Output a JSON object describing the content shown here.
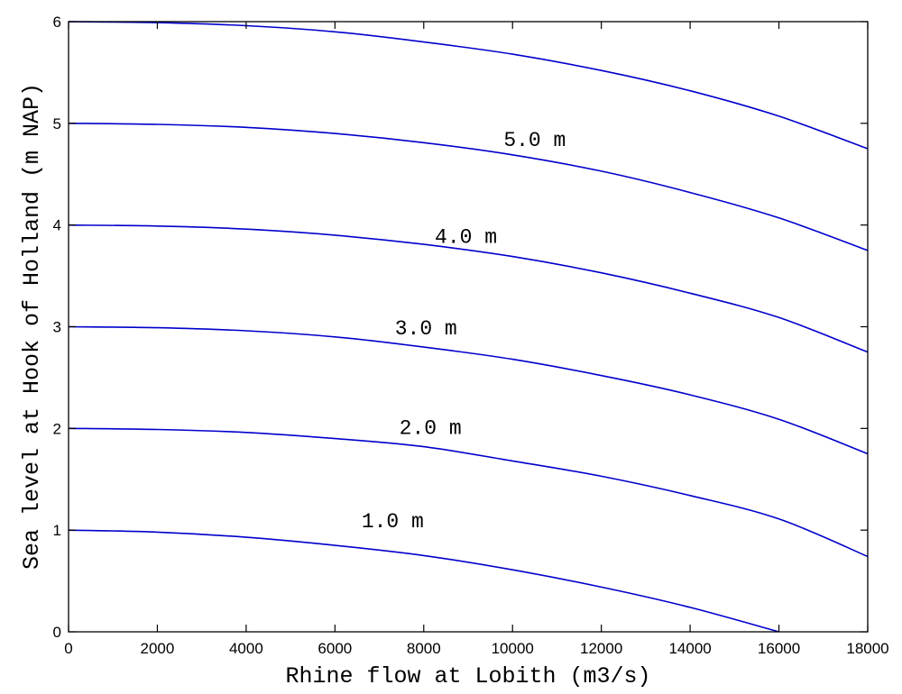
{
  "chart_data": {
    "type": "line",
    "title": "",
    "xlabel": "Rhine flow at Lobith (m3/s)",
    "ylabel": "Sea level at Hook of Holland (m NAP)",
    "xlim": [
      0,
      18000
    ],
    "ylim": [
      0,
      6
    ],
    "xticks": [
      "0",
      "2000",
      "4000",
      "6000",
      "8000",
      "10000",
      "12000",
      "14000",
      "16000",
      "18000"
    ],
    "yticks": [
      "0",
      "1",
      "2",
      "3",
      "4",
      "5",
      "6"
    ],
    "grid": false,
    "legend": "none",
    "line_color": "#0000cc",
    "series": [
      {
        "label": "1.0 m",
        "label_at": [
          7300,
          1.08
        ],
        "x": [
          0,
          2000,
          4000,
          6000,
          8000,
          10000,
          12000,
          14000,
          16000
        ],
        "y": [
          1.0,
          0.98,
          0.93,
          0.85,
          0.75,
          0.61,
          0.44,
          0.24,
          0.0
        ]
      },
      {
        "label": "2.0 m",
        "label_at": [
          8150,
          2.0
        ],
        "x": [
          0,
          2000,
          4000,
          6000,
          8000,
          10000,
          12000,
          14000,
          16000,
          18000
        ],
        "y": [
          2.0,
          1.99,
          1.96,
          1.9,
          1.82,
          1.68,
          1.53,
          1.34,
          1.11,
          0.74
        ]
      },
      {
        "label": "3.0 m",
        "label_at": [
          8050,
          2.98
        ],
        "x": [
          0,
          2000,
          4000,
          6000,
          8000,
          10000,
          12000,
          14000,
          16000,
          18000
        ],
        "y": [
          3.0,
          2.99,
          2.96,
          2.9,
          2.8,
          2.68,
          2.52,
          2.33,
          2.09,
          1.75
        ]
      },
      {
        "label": "4.0 m",
        "label_at": [
          8950,
          3.88
        ],
        "x": [
          0,
          2000,
          4000,
          6000,
          8000,
          10000,
          12000,
          14000,
          16000,
          18000
        ],
        "y": [
          4.0,
          3.99,
          3.96,
          3.9,
          3.81,
          3.69,
          3.53,
          3.33,
          3.09,
          2.75
        ]
      },
      {
        "label": "5.0 m",
        "label_at": [
          10500,
          4.83
        ],
        "x": [
          0,
          2000,
          4000,
          6000,
          8000,
          10000,
          12000,
          14000,
          16000,
          18000
        ],
        "y": [
          5.0,
          4.99,
          4.96,
          4.9,
          4.81,
          4.69,
          4.53,
          4.32,
          4.07,
          3.75
        ]
      },
      {
        "label": "",
        "label_at": null,
        "x": [
          0,
          2000,
          4000,
          6000,
          8000,
          10000,
          12000,
          14000,
          16000,
          18000
        ],
        "y": [
          6.0,
          5.99,
          5.96,
          5.9,
          5.8,
          5.68,
          5.52,
          5.32,
          5.07,
          4.75
        ]
      }
    ]
  }
}
